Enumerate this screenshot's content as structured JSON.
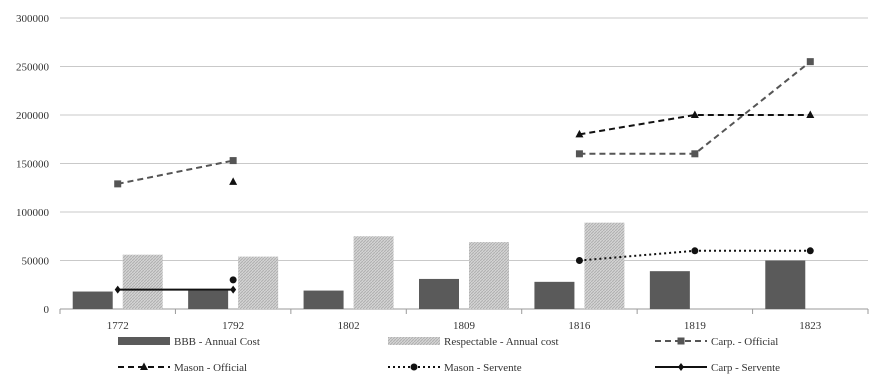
{
  "chart_data": {
    "type": "bar",
    "categories": [
      "1772",
      "1792",
      "1802",
      "1809",
      "1816",
      "1819",
      "1823"
    ],
    "ylim": [
      0,
      300000
    ],
    "yticks": [
      0,
      50000,
      100000,
      150000,
      200000,
      250000,
      300000
    ],
    "ytick_labels": [
      "0",
      "50000",
      "100000",
      "150000",
      "200000",
      "250000",
      "300000"
    ],
    "grid": true,
    "legend_position": "bottom",
    "series": [
      {
        "name": "BBB - Annual Cost",
        "type": "bar",
        "color": "#5a5a5a",
        "values": [
          18000,
          19000,
          19000,
          31000,
          28000,
          39000,
          50000
        ]
      },
      {
        "name": "Respectable - Annual cost",
        "type": "bar",
        "color": "#c8c8c8",
        "values": [
          56000,
          54000,
          75000,
          69000,
          89000,
          null,
          null
        ]
      },
      {
        "name": "Carp. - Official",
        "type": "line",
        "dash": "dashed",
        "marker": "square",
        "color": "#555555",
        "values": [
          129000,
          153000,
          null,
          null,
          160000,
          160000,
          255000
        ]
      },
      {
        "name": "Mason - Official",
        "type": "line",
        "dash": "dashed",
        "marker": "triangle",
        "color": "#111111",
        "values": [
          null,
          131000,
          null,
          null,
          180000,
          200000,
          200000
        ]
      },
      {
        "name": "Mason - Servente",
        "type": "line",
        "dash": "dotted",
        "marker": "circle",
        "color": "#111111",
        "values": [
          null,
          30000,
          null,
          null,
          50000,
          60000,
          60000
        ]
      },
      {
        "name": "Carp - Servente",
        "type": "line",
        "dash": "solid",
        "marker": "diamond",
        "color": "#111111",
        "values": [
          20000,
          20000,
          null,
          null,
          null,
          null,
          null
        ]
      }
    ]
  }
}
